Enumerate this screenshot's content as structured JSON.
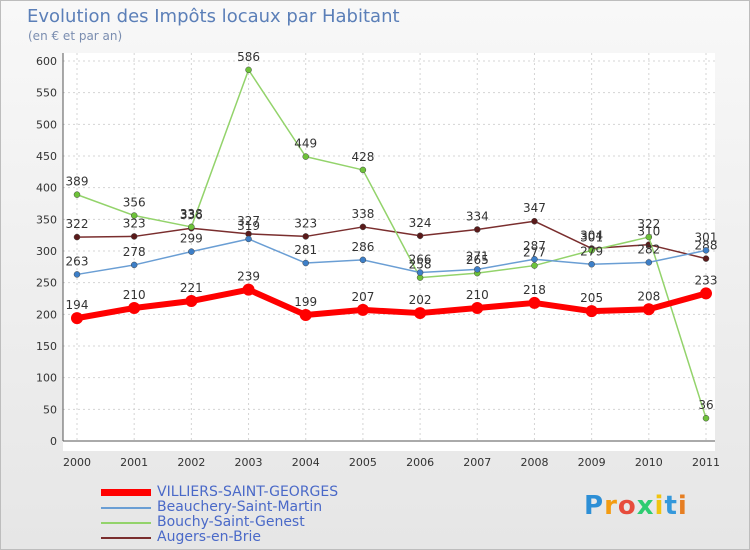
{
  "header": {
    "title": "Evolution des Impôts locaux par Habitant",
    "subtitle": "(en € et par an)"
  },
  "logo": {
    "letters": [
      "P",
      "r",
      "o",
      "x",
      "i",
      "t",
      "i"
    ],
    "colors": [
      "#2d8fd6",
      "#f39c12",
      "#e74c3c",
      "#2ecc71",
      "#f1c40f",
      "#3498db",
      "#e67e22"
    ]
  },
  "chart_data": {
    "type": "line",
    "title": "Evolution des Impôts locaux par Habitant",
    "subtitle": "(en € et par an)",
    "x": [
      "2000",
      "2001",
      "2002",
      "2003",
      "2004",
      "2005",
      "2006",
      "2007",
      "2008",
      "2009",
      "2010",
      "2011"
    ],
    "ylim": [
      0,
      600
    ],
    "yticks": [
      0,
      50,
      100,
      150,
      200,
      250,
      300,
      350,
      400,
      450,
      500,
      550,
      600
    ],
    "grid": true,
    "legend": "bottom-left",
    "series": [
      {
        "name": "Augers-en-Brie",
        "color": "#7a2e2e",
        "marker": "#5a1a1a",
        "values": [
          322,
          323,
          336,
          327,
          323,
          338,
          324,
          334,
          347,
          304,
          310,
          288
        ]
      },
      {
        "name": "Bouchy-Saint-Genest",
        "color": "#93d36b",
        "marker": "#6ec23a",
        "values": [
          389,
          356,
          338,
          586,
          449,
          428,
          258,
          265,
          277,
          301,
          322,
          36
        ]
      },
      {
        "name": "Beauchery-Saint-Martin",
        "color": "#6a9ed4",
        "marker": "#3d7fc8",
        "values": [
          263,
          278,
          299,
          319,
          281,
          286,
          266,
          271,
          287,
          279,
          282,
          301
        ]
      },
      {
        "name": "VILLIERS-SAINT-GEORGES",
        "color": "#ff0000",
        "marker": "#ff0000",
        "values": [
          194,
          210,
          221,
          239,
          199,
          207,
          202,
          210,
          218,
          205,
          208,
          233
        ]
      }
    ]
  },
  "legend": {
    "items": [
      {
        "name": "VILLIERS-SAINT-GEORGES",
        "color": "#ff0000"
      },
      {
        "name": "Beauchery-Saint-Martin",
        "color": "#6a9ed4"
      },
      {
        "name": "Bouchy-Saint-Genest",
        "color": "#93d36b"
      },
      {
        "name": "Augers-en-Brie",
        "color": "#7a2e2e"
      }
    ]
  }
}
